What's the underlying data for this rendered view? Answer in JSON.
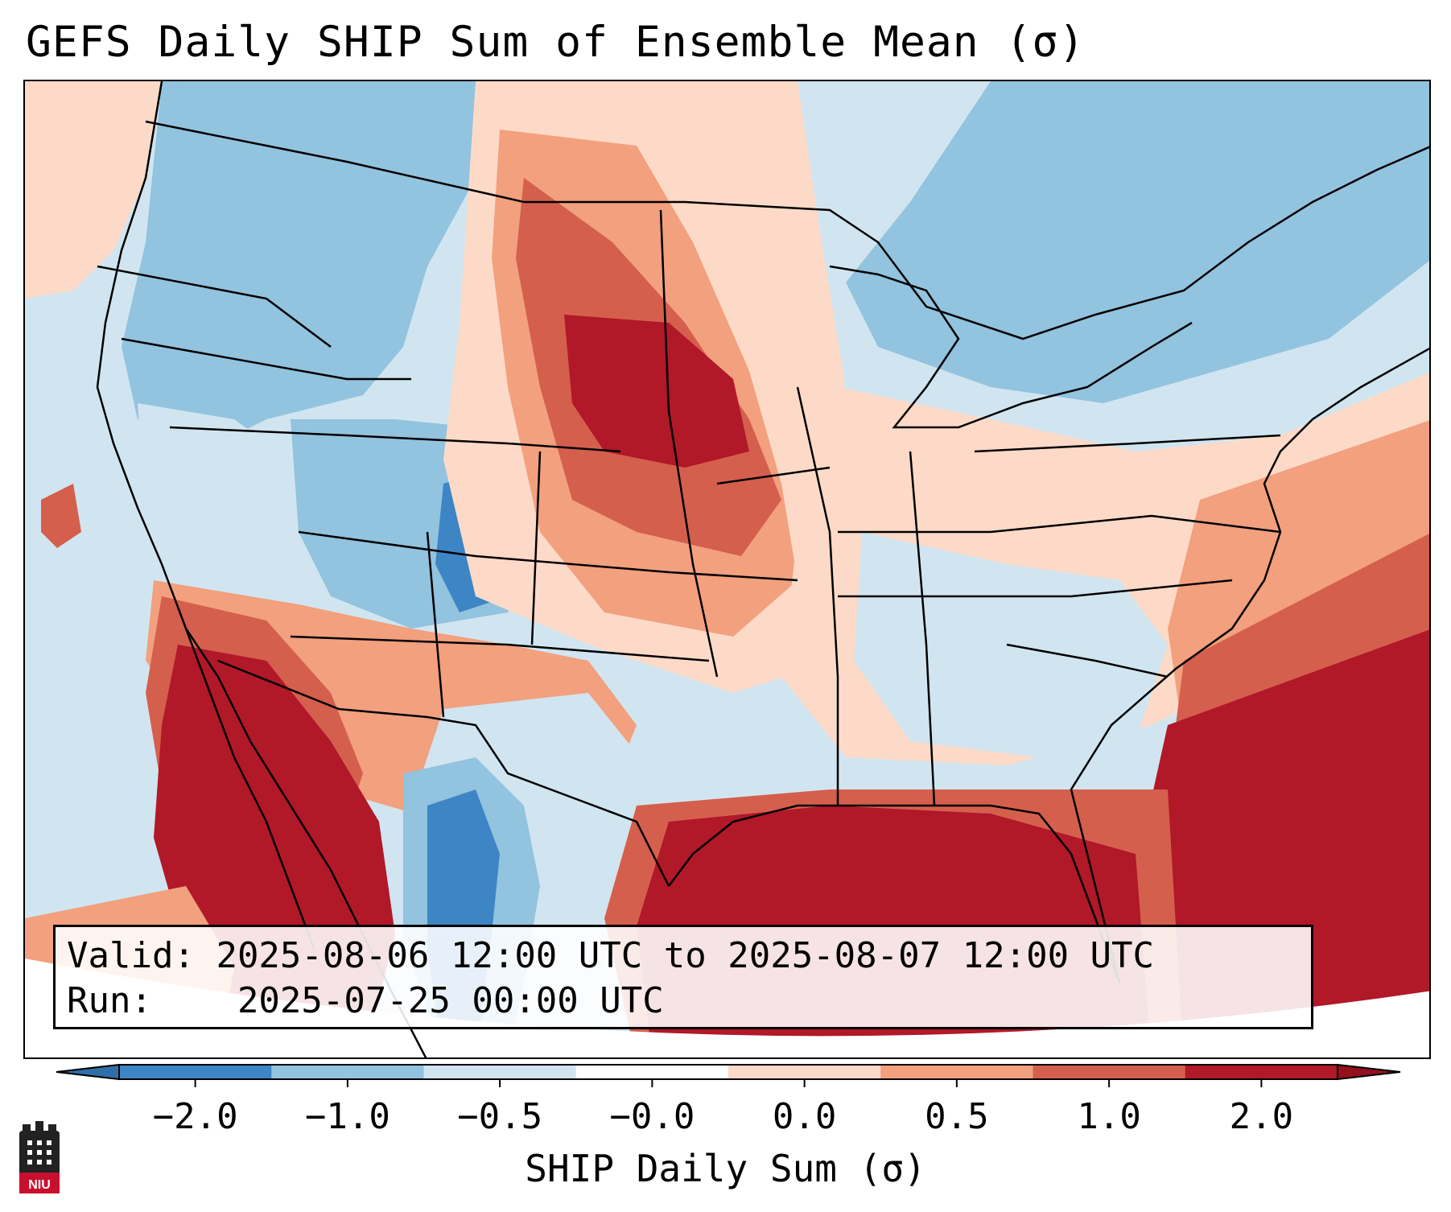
{
  "title": "GEFS Daily SHIP Sum of Ensemble Mean (σ)",
  "info": {
    "valid_label": "Valid:",
    "valid_text": "2025-08-06 12:00 UTC to 2025-08-07 12:00 UTC",
    "run_label": "Run:",
    "run_text": "2025-07-25 00:00 UTC"
  },
  "colorbar": {
    "label": "SHIP Daily Sum (σ)",
    "ticks": [
      "−2.0",
      "−1.0",
      "−0.5",
      "−0.0",
      "0.0",
      "0.5",
      "1.0",
      "2.0"
    ],
    "colors": [
      "#3d85c4",
      "#92c3df",
      "#d1e5f0",
      "#ffffff",
      "#fcdac7",
      "#f2a07e",
      "#d45f4d",
      "#b11828"
    ],
    "extend": "both"
  },
  "logo": {
    "text": "NIU",
    "color": "#c8102e"
  },
  "legend_classes": {
    "strong_negative": "#3d85c4",
    "moderate_negative": "#92c3df",
    "weak_negative": "#d1e5f0",
    "weak_positive": "#fcdac7",
    "moderate_positive": "#f2a07e",
    "strong_positive": "#d45f4d",
    "extreme_positive": "#b11828"
  }
}
